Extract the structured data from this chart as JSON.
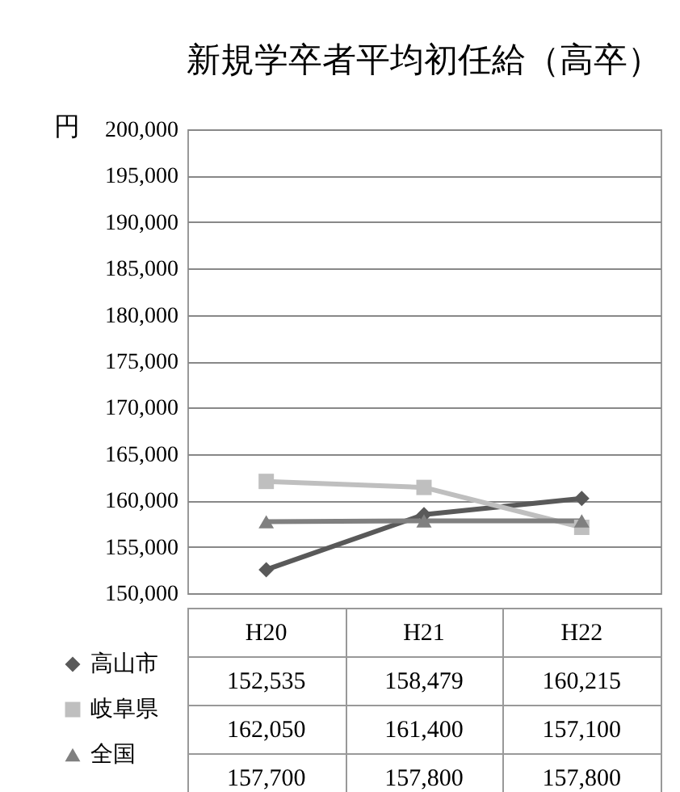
{
  "chart_data": {
    "type": "line",
    "title": "新規学卒者平均初任給（高卒）",
    "ylabel": "円",
    "categories": [
      "H20",
      "H21",
      "H22"
    ],
    "series": [
      {
        "name": "高山市",
        "color": "#595959",
        "marker": "diamond",
        "values": [
          152535,
          158479,
          160215
        ],
        "value_labels": [
          "152,535",
          "158,479",
          "160,215"
        ]
      },
      {
        "name": "岐阜県",
        "color": "#bfbfbf",
        "marker": "square",
        "values": [
          162050,
          161400,
          157100
        ],
        "value_labels": [
          "162,050",
          "161,400",
          "157,100"
        ]
      },
      {
        "name": "全国",
        "color": "#808080",
        "marker": "triangle",
        "values": [
          157700,
          157800,
          157800
        ],
        "value_labels": [
          "157,700",
          "157,800",
          "157,800"
        ]
      }
    ],
    "ylim": [
      150000,
      200000
    ],
    "yticks": [
      {
        "value": 150000,
        "label": "150,000"
      },
      {
        "value": 155000,
        "label": "155,000"
      },
      {
        "value": 160000,
        "label": "160,000"
      },
      {
        "value": 165000,
        "label": "165,000"
      },
      {
        "value": 170000,
        "label": "170,000"
      },
      {
        "value": 175000,
        "label": "175,000"
      },
      {
        "value": 180000,
        "label": "180,000"
      },
      {
        "value": 185000,
        "label": "185,000"
      },
      {
        "value": 190000,
        "label": "190,000"
      },
      {
        "value": 195000,
        "label": "195,000"
      },
      {
        "value": 200000,
        "label": "200,000"
      }
    ],
    "grid": "y",
    "legend": "bottom",
    "line_style": "solid"
  }
}
